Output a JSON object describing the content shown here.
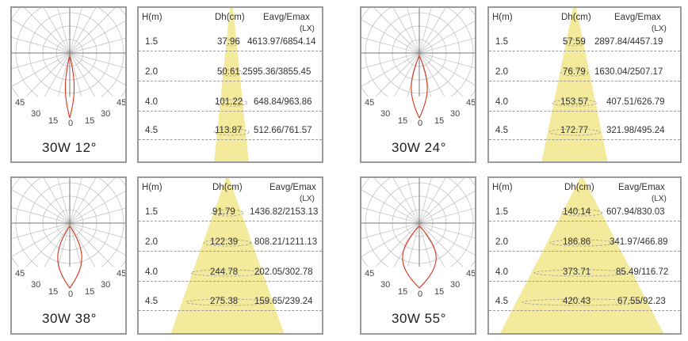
{
  "panels": [
    {
      "title": "30W 12°",
      "angle_labels": {
        "l45": "45",
        "l30": "30",
        "l15": "15",
        "c0": "0",
        "r15": "15",
        "r30": "30",
        "r45": "45"
      },
      "table": {
        "h_header": "H(m)",
        "dh_header": "Dh(cm)",
        "e_header": "Eavg/Emax",
        "unit": "(LX)",
        "rows": [
          {
            "h": "1.5",
            "dh": "37.96",
            "e": "4613.97/6854.14"
          },
          {
            "h": "2.0",
            "dh": "50.61",
            "e": "2595.36/3855.45"
          },
          {
            "h": "4.0",
            "dh": "101.22",
            "e": "648.84/963.86"
          },
          {
            "h": "4.5",
            "dh": "113.87",
            "e": "512.66/761.57"
          }
        ]
      }
    },
    {
      "title": "30W 24°",
      "angle_labels": {
        "l45": "45",
        "l30": "30",
        "l15": "15",
        "c0": "0",
        "r15": "15",
        "r30": "30",
        "r45": "45"
      },
      "table": {
        "h_header": "H(m)",
        "dh_header": "Dh(cm)",
        "e_header": "Eavg/Emax",
        "unit": "(LX)",
        "rows": [
          {
            "h": "1.5",
            "dh": "57.59",
            "e": "2897.84/4457.19"
          },
          {
            "h": "2.0",
            "dh": "76.79",
            "e": "1630.04/2507.17"
          },
          {
            "h": "4.0",
            "dh": "153.57",
            "e": "407.51/626.79"
          },
          {
            "h": "4.5",
            "dh": "172.77",
            "e": "321.98/495.24"
          }
        ]
      }
    },
    {
      "title": "30W 38°",
      "angle_labels": {
        "l45": "45",
        "l30": "30",
        "l15": "15",
        "c0": "0",
        "r15": "15",
        "r30": "30",
        "r45": "45"
      },
      "table": {
        "h_header": "H(m)",
        "dh_header": "Dh(cm)",
        "e_header": "Eavg/Emax",
        "unit": "(LX)",
        "rows": [
          {
            "h": "1.5",
            "dh": "91.79",
            "e": "1436.82/2153.13"
          },
          {
            "h": "2.0",
            "dh": "122.39",
            "e": "808.21/1211.13"
          },
          {
            "h": "4.0",
            "dh": "244.78",
            "e": "202.05/302.78"
          },
          {
            "h": "4.5",
            "dh": "275.38",
            "e": "159.65/239.24"
          }
        ]
      }
    },
    {
      "title": "30W 55°",
      "angle_labels": {
        "l45": "45",
        "l30": "30",
        "l15": "15",
        "c0": "0",
        "r15": "15",
        "r30": "30",
        "r45": "45"
      },
      "table": {
        "h_header": "H(m)",
        "dh_header": "Dh(cm)",
        "e_header": "Eavg/Emax",
        "unit": "(LX)",
        "rows": [
          {
            "h": "1.5",
            "dh": "140.14",
            "e": "607.94/830.03"
          },
          {
            "h": "2.0",
            "dh": "186.86",
            "e": "341.97/466.89"
          },
          {
            "h": "4.0",
            "dh": "373.71",
            "e": "85.49/116.72"
          },
          {
            "h": "4.5",
            "dh": "420.43",
            "e": "67.55/92.23"
          }
        ]
      }
    }
  ],
  "colors": {
    "beam": "#f3ea9c",
    "curve": "#d9331c",
    "grid": "#c4c4c4",
    "border": "#9a9a9a"
  }
}
